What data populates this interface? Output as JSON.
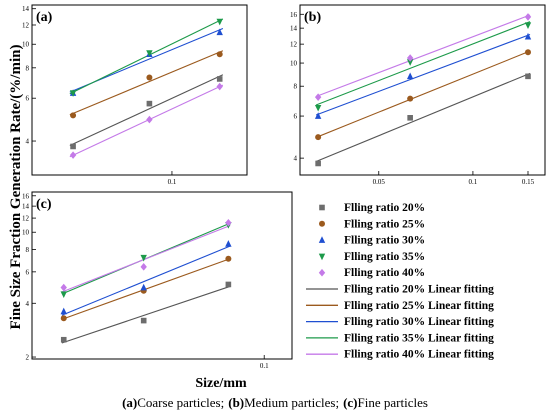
{
  "figure": {
    "y_label": "Fine Size Fraction Generation Rate/(%/min)",
    "x_label": "Size/mm",
    "caption": {
      "a_tag": "(a)",
      "a_text": "Coarse particles;",
      "b_tag": "(b)",
      "b_text": "Medium particles;",
      "c_tag": "(c)",
      "c_text": "Fine particles"
    }
  },
  "chart_data": [
    {
      "type": "scatter",
      "panel": "(a)",
      "x_scale": "log",
      "y_scale": "log",
      "x_ticks": [
        0.1
      ],
      "x_tick_labels": [
        "0.1"
      ],
      "y_ticks": [
        4,
        6,
        8,
        10,
        12,
        14
      ],
      "y_tick_labels": [
        "4",
        "6",
        "8",
        "10",
        "12",
        "14"
      ],
      "xlim": [
        0.052,
        0.142
      ],
      "ylim": [
        2.9,
        14.5
      ],
      "series": [
        {
          "name": "Flling ratio 20%",
          "x": [
            0.063,
            0.09,
            0.125
          ],
          "y": [
            3.8,
            5.7,
            7.2
          ]
        },
        {
          "name": "Flling ratio 25%",
          "x": [
            0.063,
            0.09,
            0.125
          ],
          "y": [
            5.1,
            7.3,
            9.1
          ]
        },
        {
          "name": "Flling ratio 30%",
          "x": [
            0.063,
            0.09,
            0.125
          ],
          "y": [
            6.3,
            9.1,
            11.2
          ]
        },
        {
          "name": "Flling ratio 35%",
          "x": [
            0.063,
            0.09,
            0.125
          ],
          "y": [
            6.3,
            9.2,
            12.4
          ]
        },
        {
          "name": "Flling ratio 40%",
          "x": [
            0.063,
            0.09,
            0.125
          ],
          "y": [
            3.5,
            4.9,
            6.7
          ]
        }
      ],
      "grid": false
    },
    {
      "type": "scatter",
      "panel": "(b)",
      "x_scale": "log",
      "y_scale": "log",
      "x_ticks": [
        0.05,
        0.1,
        0.15
      ],
      "x_tick_labels": [
        "0.05",
        "0.1",
        "0.15"
      ],
      "y_ticks": [
        4,
        6,
        8,
        10,
        12,
        14,
        16
      ],
      "y_tick_labels": [
        "4",
        "6",
        "8",
        "10",
        "12",
        "14",
        "16"
      ],
      "xlim": [
        0.028,
        0.17
      ],
      "ylim": [
        3.4,
        17.5
      ],
      "series": [
        {
          "name": "Flling ratio 20%",
          "x": [
            0.032,
            0.063,
            0.15
          ],
          "y": [
            3.8,
            5.9,
            8.8
          ]
        },
        {
          "name": "Flling ratio 25%",
          "x": [
            0.032,
            0.063,
            0.15
          ],
          "y": [
            4.9,
            7.1,
            11.1
          ]
        },
        {
          "name": "Flling ratio 30%",
          "x": [
            0.032,
            0.063,
            0.15
          ],
          "y": [
            6.0,
            8.8,
            12.9
          ]
        },
        {
          "name": "Flling ratio 35%",
          "x": [
            0.032,
            0.063,
            0.15
          ],
          "y": [
            6.5,
            10.1,
            14.4
          ]
        },
        {
          "name": "Flling ratio 40%",
          "x": [
            0.032,
            0.063,
            0.15
          ],
          "y": [
            7.2,
            10.5,
            15.6
          ]
        }
      ],
      "grid": false
    },
    {
      "type": "scatter",
      "panel": "(c)",
      "x_scale": "log",
      "y_scale": "log",
      "x_ticks": [
        0.1
      ],
      "x_tick_labels": [
        "0.1"
      ],
      "y_ticks": [
        2,
        4,
        6,
        8,
        10,
        12,
        14,
        16
      ],
      "y_tick_labels": [
        "2",
        "4",
        "6",
        "8",
        "10",
        "12",
        "14",
        "16"
      ],
      "xlim": [
        0.0155,
        0.125
      ],
      "ylim": [
        1.95,
        16.8
      ],
      "series": [
        {
          "name": "Flling ratio 20%",
          "x": [
            0.02,
            0.038,
            0.075
          ],
          "y": [
            2.5,
            3.2,
            5.1
          ]
        },
        {
          "name": "Flling ratio 25%",
          "x": [
            0.02,
            0.038,
            0.075
          ],
          "y": [
            3.3,
            4.7,
            7.1
          ]
        },
        {
          "name": "Flling ratio 30%",
          "x": [
            0.02,
            0.038,
            0.075
          ],
          "y": [
            3.6,
            4.9,
            8.6
          ]
        },
        {
          "name": "Flling ratio 35%",
          "x": [
            0.02,
            0.038,
            0.075
          ],
          "y": [
            4.5,
            7.2,
            11.0
          ]
        },
        {
          "name": "Flling ratio 40%",
          "x": [
            0.02,
            0.038,
            0.075
          ],
          "y": [
            4.9,
            6.4,
            11.3
          ]
        }
      ],
      "grid": false
    }
  ],
  "legend": {
    "placement": "right of panel (c)",
    "items": [
      {
        "label": "Flling ratio 20%",
        "kind": "marker",
        "marker": "square",
        "color": "#6d6d6d"
      },
      {
        "label": "Flling ratio 25%",
        "kind": "marker",
        "marker": "circle",
        "color": "#9b5a1e"
      },
      {
        "label": "Flling ratio 30%",
        "kind": "marker",
        "marker": "triangle-up",
        "color": "#1f4fd1"
      },
      {
        "label": "Flling ratio 35%",
        "kind": "marker",
        "marker": "triangle-down",
        "color": "#1d9a4a"
      },
      {
        "label": "Flling ratio 40%",
        "kind": "marker",
        "marker": "diamond",
        "color": "#c47ae8"
      },
      {
        "label": "Flling ratio 20% Linear fitting",
        "kind": "line",
        "color": "#555555"
      },
      {
        "label": "Flling ratio 25% Linear fitting",
        "kind": "line",
        "color": "#9b5a1e"
      },
      {
        "label": "Flling ratio 30% Linear fitting",
        "kind": "line",
        "color": "#1f4fd1"
      },
      {
        "label": "Flling ratio 35% Linear fitting",
        "kind": "line",
        "color": "#1d9a4a"
      },
      {
        "label": "Flling ratio 40% Linear fitting",
        "kind": "line",
        "color": "#c47ae8"
      }
    ]
  },
  "series_style": {
    "markers": [
      "square",
      "circle",
      "triangle-up",
      "triangle-down",
      "diamond"
    ],
    "marker_colors": [
      "#6d6d6d",
      "#9b5a1e",
      "#1f4fd1",
      "#1d9a4a",
      "#c47ae8"
    ],
    "line_colors": [
      "#555555",
      "#9b5a1e",
      "#1f4fd1",
      "#1d9a4a",
      "#c47ae8"
    ]
  }
}
